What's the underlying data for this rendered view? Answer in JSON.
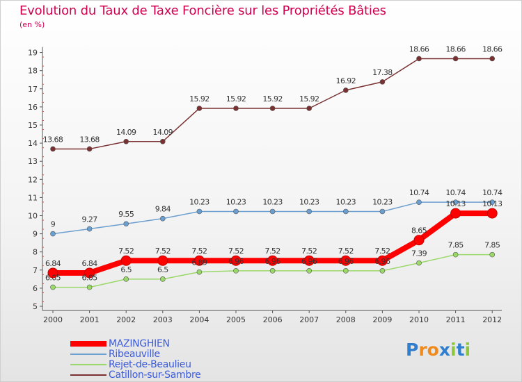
{
  "title": "Evolution du Taux de Taxe Foncière sur les Propriétés Bâties",
  "unit": "(en %)",
  "logo": {
    "letters": [
      "P",
      "r",
      "o",
      "x",
      "i",
      "t",
      "i"
    ],
    "colors": [
      "#2e7fd0",
      "#f08a1c",
      "#f08a1c",
      "#2e7fd0",
      "#8cc63f",
      "#2e7fd0",
      "#8cc63f"
    ]
  },
  "chart_data": {
    "type": "line",
    "title": "Evolution du Taux de Taxe Foncière sur les Propriétés Bâties",
    "ylabel": "(en %)",
    "x": [
      "2000",
      "2001",
      "2002",
      "2003",
      "2004",
      "2005",
      "2006",
      "2007",
      "2008",
      "2009",
      "2010",
      "2011",
      "2012"
    ],
    "ylim": [
      5,
      19
    ],
    "yticks": [
      "5",
      "6",
      "7",
      "8",
      "9",
      "10",
      "11",
      "12",
      "13",
      "14",
      "15",
      "16",
      "17",
      "18",
      "19"
    ],
    "grid": false,
    "legend": "bottom-left",
    "series": [
      {
        "name": "MAZINGHIEN",
        "color": "#ff0000",
        "emphasis": true,
        "values": [
          6.84,
          6.84,
          7.52,
          7.52,
          7.52,
          7.52,
          7.52,
          7.52,
          7.52,
          7.52,
          8.65,
          10.13,
          10.13
        ],
        "labels": [
          "6.84",
          "6.84",
          "7.52",
          "7.52",
          "7.52",
          "7.52",
          "7.52",
          "7.52",
          "7.52",
          "7.52",
          "8.65",
          "10.13",
          "10.13"
        ]
      },
      {
        "name": "Ribeauville",
        "color": "#6b9fd0",
        "values": [
          9,
          9.27,
          9.55,
          9.84,
          10.23,
          10.23,
          10.23,
          10.23,
          10.23,
          10.23,
          10.74,
          10.74,
          10.74
        ],
        "labels": [
          "9",
          "9.27",
          "9.55",
          "9.84",
          "10.23",
          "10.23",
          "10.23",
          "10.23",
          "10.23",
          "10.23",
          "10.74",
          "10.74",
          "10.74"
        ]
      },
      {
        "name": "Rejet-de-Beaulieu",
        "color": "#9bd86a",
        "values": [
          6.05,
          6.05,
          6.5,
          6.5,
          6.89,
          6.96,
          6.96,
          6.96,
          6.96,
          6.96,
          7.39,
          7.85,
          7.85
        ],
        "labels": [
          "6.05",
          "6.05",
          "6.5",
          "6.5",
          "6.89",
          "6.96",
          "6.96",
          "6.96",
          "6.96",
          "6.96",
          "7.39",
          "7.85",
          "7.85"
        ]
      },
      {
        "name": "Catillon-sur-Sambre",
        "color": "#7a3030",
        "values": [
          13.68,
          13.68,
          14.09,
          14.09,
          15.92,
          15.92,
          15.92,
          15.92,
          16.92,
          17.38,
          18.66,
          18.66,
          18.66
        ],
        "labels": [
          "13.68",
          "13.68",
          "14.09",
          "14.09",
          "15.92",
          "15.92",
          "15.92",
          "15.92",
          "16.92",
          "17.38",
          "18.66",
          "18.66",
          "18.66"
        ]
      }
    ]
  }
}
